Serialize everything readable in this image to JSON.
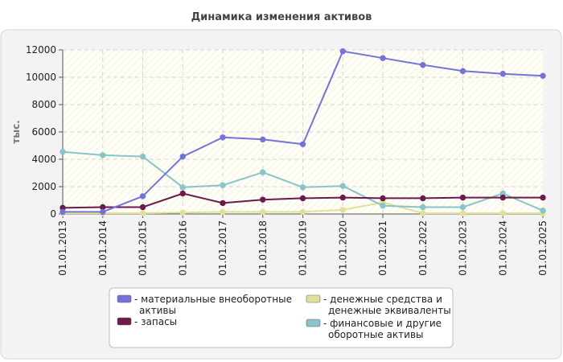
{
  "chart_data": {
    "type": "line",
    "title": "Динамика изменения активов",
    "xlabel": "",
    "ylabel": "тыс.",
    "ylim": [
      0,
      12000
    ],
    "yticks": [
      "0",
      "2000",
      "4000",
      "6000",
      "8000",
      "10000",
      "12000"
    ],
    "grid": true,
    "legend_position": "bottom",
    "categories": [
      "01.01.2013",
      "01.01.2014",
      "01.01.2015",
      "01.01.2016",
      "01.01.2017",
      "01.01.2018",
      "01.01.2019",
      "01.01.2020",
      "01.01.2021",
      "01.01.2022",
      "01.01.2023",
      "01.01.2024",
      "01.01.2025"
    ],
    "series": [
      {
        "name": "материальные внеоборотные активы",
        "legend_lines": [
          "- материальные внеоборотные",
          "активы"
        ],
        "color": "#7373d8",
        "values": [
          150,
          150,
          1300,
          4200,
          5600,
          5450,
          5100,
          11900,
          11400,
          10900,
          10450,
          10250,
          10100
        ]
      },
      {
        "name": "запасы",
        "legend_lines": [
          "- запасы"
        ],
        "color": "#6b1a4d",
        "values": [
          450,
          500,
          500,
          1500,
          800,
          1050,
          1150,
          1200,
          1150,
          1150,
          1200,
          1200,
          1200
        ]
      },
      {
        "name": "денежные средства и денежные эквиваленты",
        "legend_lines": [
          "- денежные средства и",
          "денежные эквиваленты"
        ],
        "color": "#e0e09a",
        "values": [
          50,
          50,
          50,
          100,
          150,
          150,
          150,
          300,
          850,
          50,
          50,
          50,
          50
        ]
      },
      {
        "name": "финансовые и другие оборотные активы",
        "legend_lines": [
          "- финансовые и другие",
          "оборотные активы"
        ],
        "color": "#88c4c8",
        "values": [
          4550,
          4300,
          4200,
          1950,
          2100,
          3050,
          1950,
          2050,
          600,
          500,
          500,
          1500,
          250
        ]
      }
    ]
  }
}
